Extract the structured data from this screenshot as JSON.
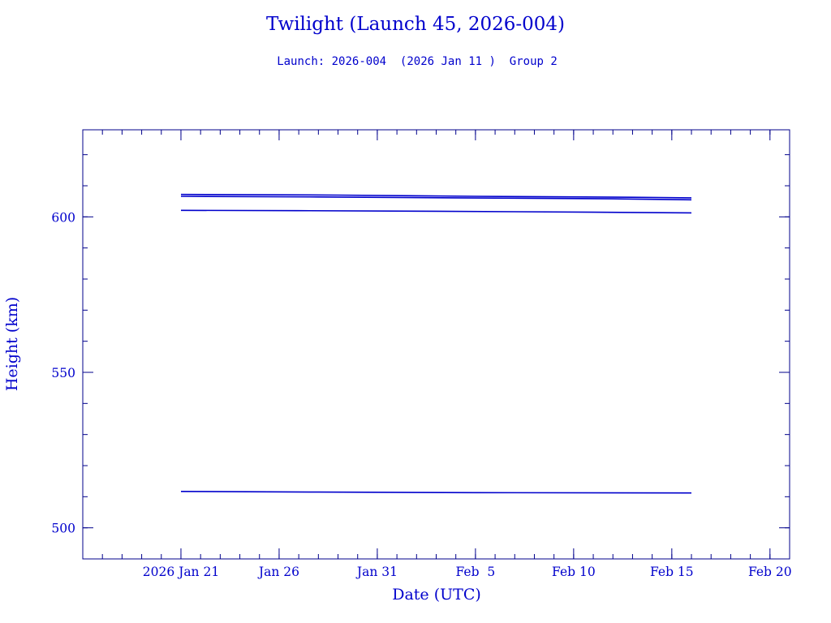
{
  "colors": {
    "ink": "#0000cc",
    "axis": "#00008b",
    "line": "#0000cc",
    "background": "#ffffff"
  },
  "chart_data": {
    "type": "line",
    "title": "Twilight (Launch 45, 2026-004)",
    "subtitle": "Launch: 2026-004  (2026 Jan 11 )  Group 2",
    "xlabel": "Date (UTC)",
    "ylabel": "Height (km)",
    "x_is_date": true,
    "xlim": [
      "2026-01-16",
      "2026-02-21"
    ],
    "ylim": [
      490,
      628
    ],
    "x_ticks": [
      {
        "date": "2026-01-21",
        "label": "2026 Jan 21"
      },
      {
        "date": "2026-01-26",
        "label": "Jan 26"
      },
      {
        "date": "2026-01-31",
        "label": "Jan 31"
      },
      {
        "date": "2026-02-05",
        "label": "Feb  5"
      },
      {
        "date": "2026-02-10",
        "label": "Feb 10"
      },
      {
        "date": "2026-02-15",
        "label": "Feb 15"
      },
      {
        "date": "2026-02-20",
        "label": "Feb 20"
      }
    ],
    "x_minor_step_days": 1,
    "y_ticks": [
      500,
      550,
      600
    ],
    "y_minor_step": 10,
    "grid": false,
    "legend": "none",
    "series": [
      {
        "x": [
          "2026-01-21",
          "2026-01-29",
          "2026-02-05",
          "2026-02-13",
          "2026-02-16"
        ],
        "values": [
          607.2,
          607.0,
          606.6,
          606.3,
          606.1
        ]
      },
      {
        "x": [
          "2026-01-21",
          "2026-01-28",
          "2026-02-04",
          "2026-02-12",
          "2026-02-16"
        ],
        "values": [
          606.6,
          606.4,
          606.1,
          605.8,
          605.5
        ]
      },
      {
        "x": [
          "2026-01-21",
          "2026-01-27",
          "2026-02-03",
          "2026-02-11",
          "2026-02-16"
        ],
        "values": [
          602.1,
          602.0,
          601.8,
          601.5,
          601.3
        ]
      },
      {
        "x": [
          "2026-01-21",
          "2026-01-28",
          "2026-02-05",
          "2026-02-16"
        ],
        "values": [
          511.7,
          511.5,
          511.3,
          511.2
        ]
      }
    ]
  }
}
